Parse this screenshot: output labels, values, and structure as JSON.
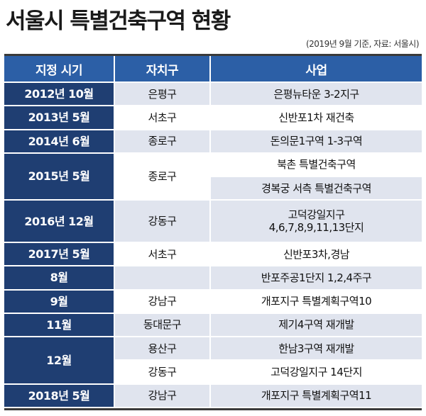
{
  "title": "서울시 특별건축구역 현황",
  "source": "(2019년 9월 기준, 자료: 서울시)",
  "headers": [
    "지정 시기",
    "자치구",
    "사업"
  ],
  "rows": [
    {
      "period": "2012년 10월",
      "district": "은평구",
      "project": "은평뉴타운 3-2지구"
    },
    {
      "period": "2013년 5월",
      "district": "서초구",
      "project": "신반포1차 재건축"
    },
    {
      "period": "2014년 6월",
      "district": "종로구",
      "project": "돈의문1구역 1-3구역"
    },
    {
      "period": "2015년 5월",
      "district": "종로구",
      "project": "북촌 특별건축구역",
      "project2": "경복궁 서측 특별건축구역"
    },
    {
      "period": "2016년 12월",
      "district": "강동구",
      "project": "고덕강일지구",
      "project_line2": "4,6,7,8,9,11,13단지"
    },
    {
      "period": "2017년 5월",
      "district": "서초구",
      "project": "신반포3차,경남"
    },
    {
      "period": "8월",
      "district": "",
      "project": "반포주공1단지 1,2,4주구"
    },
    {
      "period": "9월",
      "district": "강남구",
      "project": "개포지구 특별계획구역10"
    },
    {
      "period": "11월",
      "district": "동대문구",
      "project": "제기4구역 재개발"
    },
    {
      "period": "12월",
      "district": "용산구",
      "project": "한남3구역 재개발",
      "district2": "강동구",
      "project2": "고덕강일지구 14단지"
    },
    {
      "period": "2018년 5월",
      "district": "강남구",
      "project": "개포지구 특별계획구역11"
    }
  ]
}
